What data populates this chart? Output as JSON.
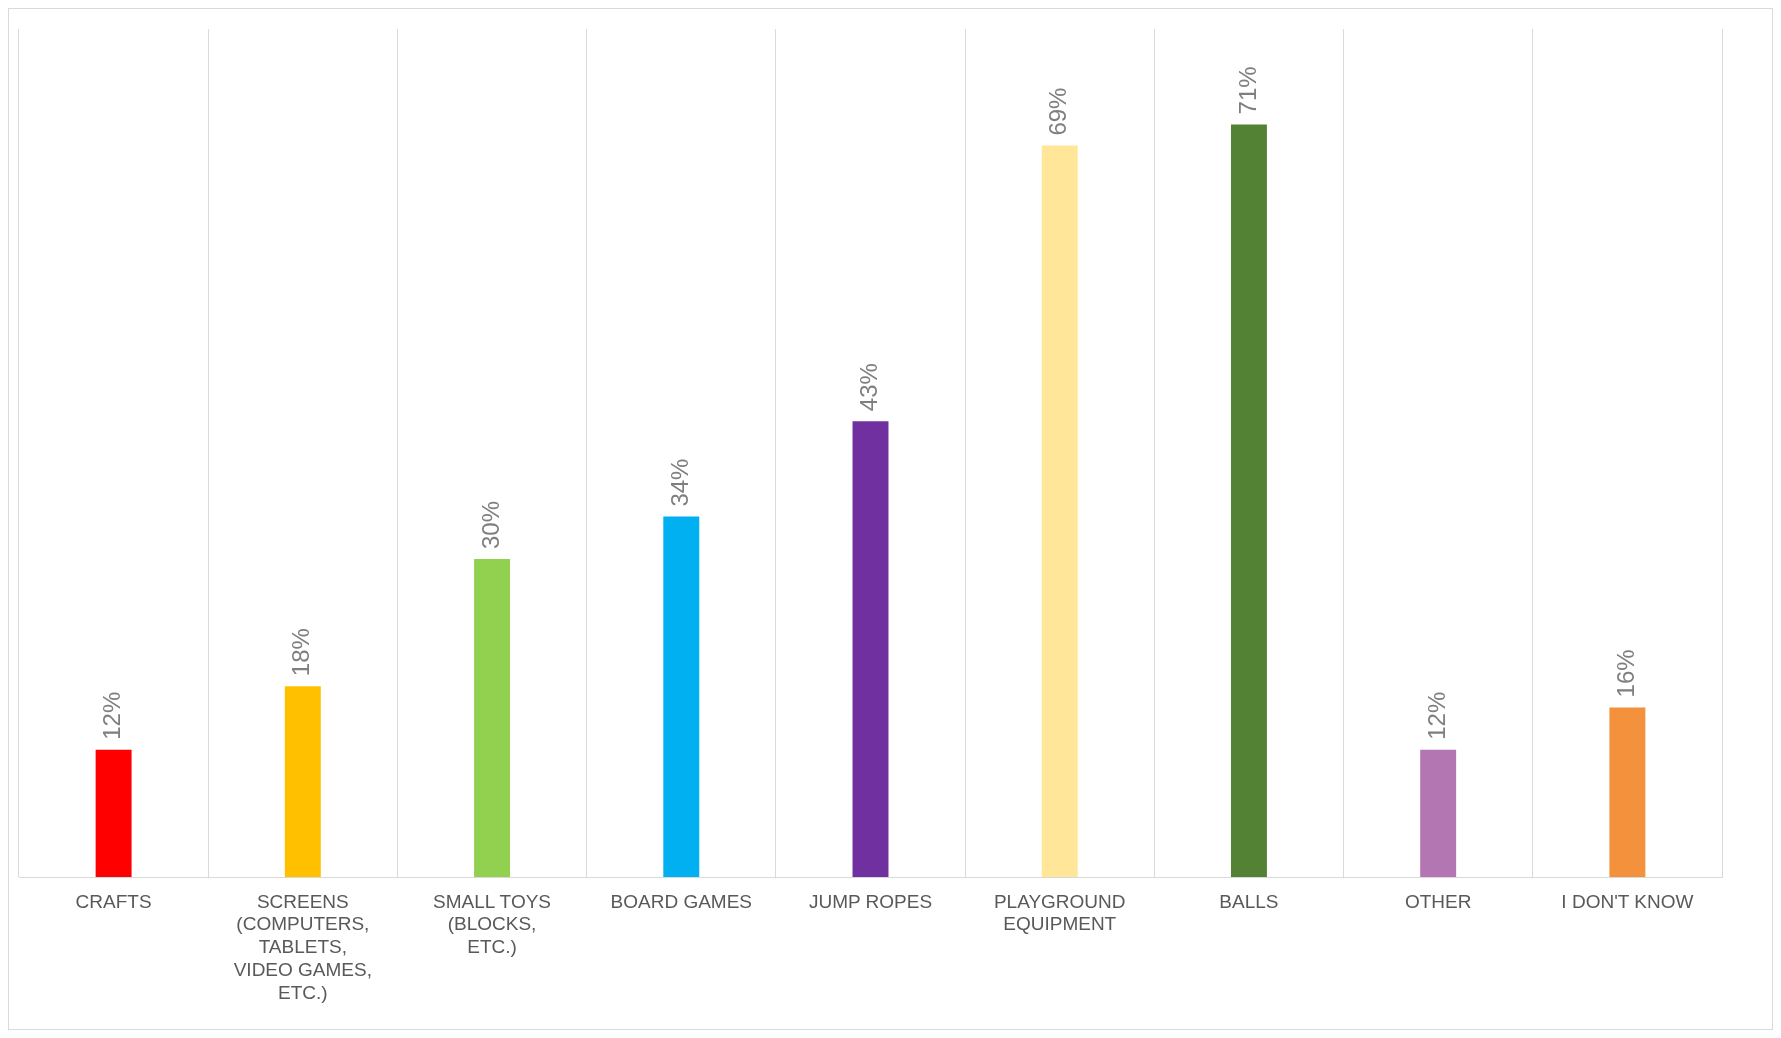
{
  "chart_data": {
    "type": "bar",
    "categories": [
      "CRAFTS",
      "SCREENS (COMPUTERS, TABLETS, VIDEO GAMES, ETC.)",
      "SMALL TOYS (BLOCKS, ETC.)",
      "BOARD GAMES",
      "JUMP ROPES",
      "PLAYGROUND EQUIPMENT",
      "BALLS",
      "OTHER",
      "I DON'T KNOW"
    ],
    "values": [
      12,
      18,
      30,
      34,
      43,
      69,
      71,
      12,
      16
    ],
    "colors": [
      "#ff0000",
      "#ffc000",
      "#92d050",
      "#00b0f0",
      "#7030a0",
      "#ffe699",
      "#548235",
      "#b476b2",
      "#f4913c"
    ],
    "value_labels": [
      "12%",
      "18%",
      "30%",
      "34%",
      "43%",
      "69%",
      "71%",
      "12%",
      "16%"
    ],
    "ylim": [
      0,
      80
    ],
    "grid": "x",
    "legend": false,
    "tick_labels": "x"
  }
}
